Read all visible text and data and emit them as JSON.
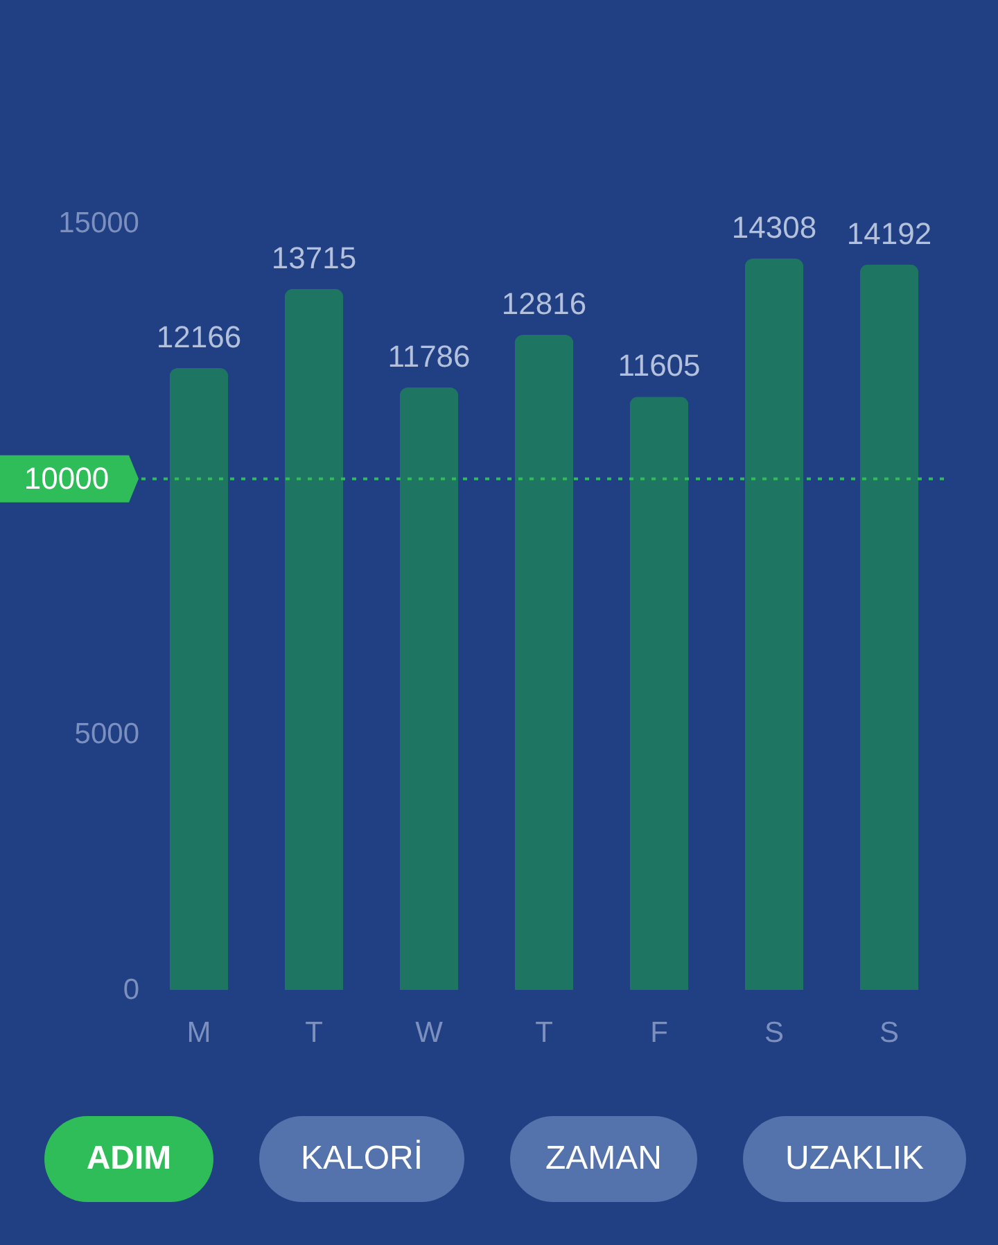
{
  "chart_data": {
    "type": "bar",
    "categories": [
      "M",
      "T",
      "W",
      "T",
      "F",
      "S",
      "S"
    ],
    "values": [
      12166,
      13715,
      11786,
      12816,
      11605,
      14308,
      14192
    ],
    "color": "#1e7561",
    "ylim": [
      0,
      15000
    ],
    "yticks": [
      0,
      5000,
      15000
    ],
    "data_labels": true,
    "ref_lines": [
      {
        "axis": "y",
        "value": 10000,
        "label": "10000",
        "color": "#2ebd59",
        "line_style": "dotted"
      }
    ],
    "annotations": [
      "ADIM",
      "KALORİ",
      "ZAMAN",
      "UZAKLIK"
    ]
  }
}
